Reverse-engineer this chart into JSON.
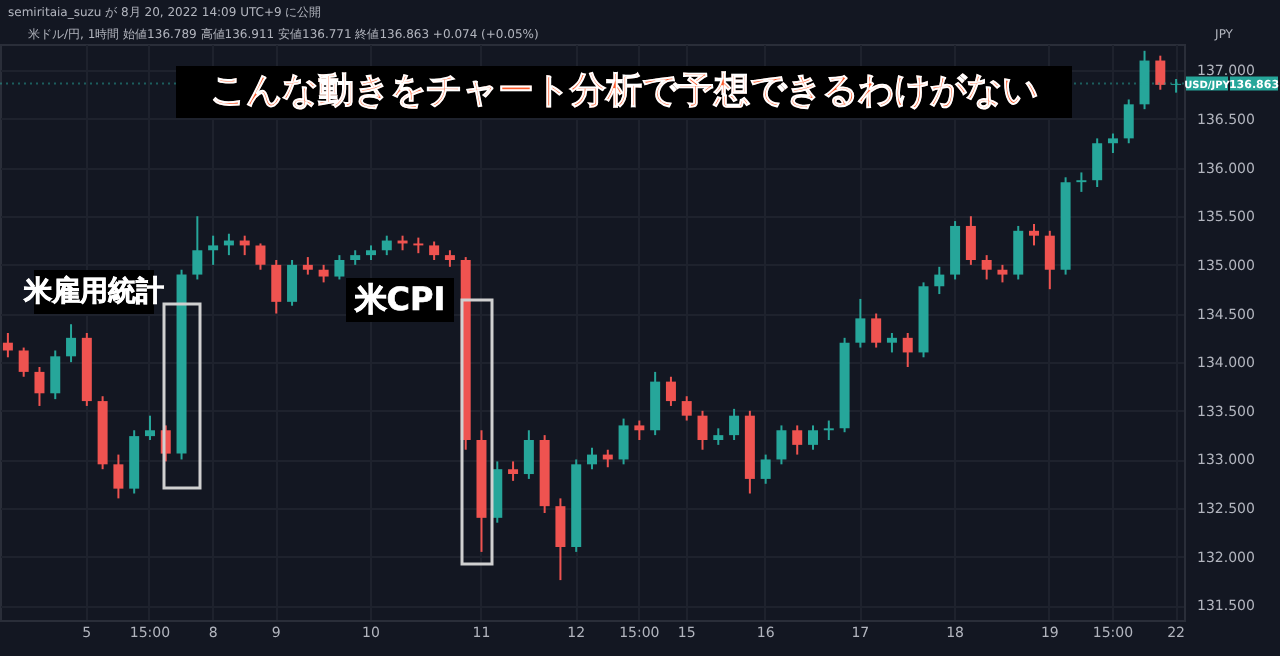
{
  "chart_data": {
    "type": "candlestick",
    "title": "米ドル/円, 1時間 始値136.789 高値136.911 安値136.771 終値136.863 +0.074 (+0.05%)",
    "subtitle": "semiritaia_suzu が 8月 20, 2022 14:09 UTC+9 に公開",
    "ylabel": "JPY",
    "annotations": [
      "こんな動きをチャート分析で予想できるわけがない",
      "米雇用統計",
      "米CPI",
      "136.863"
    ],
    "categories": [
      null,
      null,
      null,
      null,
      null,
      "5",
      null,
      null,
      null,
      "15:00",
      null,
      null,
      null,
      "8",
      null,
      null,
      null,
      "9",
      null,
      null,
      null,
      null,
      null,
      "10",
      null,
      null,
      null,
      null,
      null,
      null,
      "11",
      null,
      null,
      null,
      null,
      null,
      "12",
      null,
      null,
      null,
      "15:00",
      null,
      null,
      "15",
      null,
      null,
      null,
      null,
      "16",
      null,
      null,
      null,
      null,
      null,
      "17",
      null,
      null,
      null,
      null,
      null,
      "18",
      null,
      null,
      null,
      null,
      null,
      "19",
      null,
      null,
      null,
      "15:00",
      null,
      null,
      null,
      "22"
    ],
    "ohlc": [
      [
        134.2,
        134.3,
        134.05,
        134.12
      ],
      [
        134.12,
        134.15,
        133.85,
        133.9
      ],
      [
        133.9,
        133.95,
        133.55,
        133.68
      ],
      [
        133.68,
        134.12,
        133.62,
        134.06
      ],
      [
        134.06,
        134.39,
        134.0,
        134.25
      ],
      [
        134.25,
        134.3,
        133.55,
        133.6
      ],
      [
        133.6,
        133.65,
        132.9,
        132.95
      ],
      [
        132.95,
        133.05,
        132.6,
        132.7
      ],
      [
        132.7,
        133.3,
        132.65,
        133.24
      ],
      [
        133.24,
        133.45,
        133.2,
        133.3
      ],
      [
        133.3,
        133.35,
        132.98,
        133.06
      ],
      [
        133.06,
        134.95,
        133.0,
        134.9
      ],
      [
        134.9,
        135.5,
        134.85,
        135.15
      ],
      [
        135.15,
        135.3,
        135.0,
        135.2
      ],
      [
        135.2,
        135.32,
        135.1,
        135.25
      ],
      [
        135.25,
        135.3,
        135.1,
        135.2
      ],
      [
        135.2,
        135.22,
        134.95,
        135.0
      ],
      [
        135.0,
        135.05,
        134.5,
        134.62
      ],
      [
        134.62,
        135.05,
        134.58,
        135.0
      ],
      [
        135.0,
        135.08,
        134.9,
        134.95
      ],
      [
        134.95,
        135.0,
        134.82,
        134.88
      ],
      [
        134.88,
        135.1,
        134.85,
        135.05
      ],
      [
        135.05,
        135.15,
        135.0,
        135.1
      ],
      [
        135.1,
        135.2,
        135.05,
        135.15
      ],
      [
        135.15,
        135.3,
        135.1,
        135.25
      ],
      [
        135.25,
        135.3,
        135.15,
        135.22
      ],
      [
        135.22,
        135.28,
        135.12,
        135.2
      ],
      [
        135.2,
        135.24,
        135.05,
        135.1
      ],
      [
        135.1,
        135.15,
        134.98,
        135.05
      ],
      [
        135.05,
        135.08,
        133.1,
        133.2
      ],
      [
        133.2,
        133.3,
        132.05,
        132.4
      ],
      [
        132.4,
        132.98,
        132.35,
        132.9
      ],
      [
        132.9,
        132.98,
        132.78,
        132.85
      ],
      [
        132.85,
        133.3,
        132.8,
        133.2
      ],
      [
        133.2,
        133.25,
        132.45,
        132.52
      ],
      [
        132.52,
        132.6,
        131.76,
        132.1
      ],
      [
        132.1,
        133.0,
        132.05,
        132.95
      ],
      [
        132.95,
        133.12,
        132.9,
        133.05
      ],
      [
        133.05,
        133.1,
        132.92,
        133.0
      ],
      [
        133.0,
        133.42,
        132.95,
        133.35
      ],
      [
        133.35,
        133.4,
        133.2,
        133.3
      ],
      [
        133.3,
        133.9,
        133.25,
        133.8
      ],
      [
        133.8,
        133.85,
        133.55,
        133.6
      ],
      [
        133.6,
        133.65,
        133.4,
        133.45
      ],
      [
        133.45,
        133.5,
        133.1,
        133.2
      ],
      [
        133.2,
        133.32,
        133.15,
        133.25
      ],
      [
        133.25,
        133.52,
        133.2,
        133.45
      ],
      [
        133.45,
        133.5,
        132.65,
        132.8
      ],
      [
        132.8,
        133.05,
        132.75,
        133.0
      ],
      [
        133.0,
        133.35,
        132.95,
        133.3
      ],
      [
        133.3,
        133.35,
        133.05,
        133.15
      ],
      [
        133.15,
        133.35,
        133.1,
        133.3
      ],
      [
        133.3,
        133.4,
        133.2,
        133.32
      ],
      [
        133.32,
        134.25,
        133.28,
        134.2
      ],
      [
        134.2,
        134.65,
        134.15,
        134.45
      ],
      [
        134.45,
        134.5,
        134.15,
        134.2
      ],
      [
        134.2,
        134.3,
        134.1,
        134.25
      ],
      [
        134.25,
        134.3,
        133.95,
        134.1
      ],
      [
        134.1,
        134.82,
        134.05,
        134.78
      ],
      [
        134.78,
        134.98,
        134.7,
        134.9
      ],
      [
        134.9,
        135.45,
        134.85,
        135.4
      ],
      [
        135.4,
        135.5,
        135.0,
        135.05
      ],
      [
        135.05,
        135.1,
        134.85,
        134.95
      ],
      [
        134.95,
        135.0,
        134.82,
        134.9
      ],
      [
        134.9,
        135.4,
        134.85,
        135.35
      ],
      [
        135.35,
        135.42,
        135.2,
        135.3
      ],
      [
        135.3,
        135.35,
        134.75,
        134.95
      ],
      [
        134.95,
        135.9,
        134.9,
        135.85
      ],
      [
        135.85,
        135.95,
        135.75,
        135.87
      ],
      [
        135.87,
        136.3,
        135.8,
        136.25
      ],
      [
        136.25,
        136.35,
        136.15,
        136.3
      ],
      [
        136.3,
        136.7,
        136.25,
        136.65
      ],
      [
        136.65,
        137.2,
        136.6,
        137.1
      ],
      [
        137.1,
        137.15,
        136.8,
        136.85
      ],
      [
        136.85,
        136.91,
        136.77,
        136.86
      ]
    ],
    "colors": [
      "#ef5350",
      "#ef5350",
      "#ef5350",
      "#26a69a",
      "#26a69a",
      "#ef5350",
      "#ef5350",
      "#ef5350",
      "#26a69a",
      "#26a69a",
      "#ef5350",
      "#26a69a",
      "#26a69a",
      "#26a69a",
      "#26a69a",
      "#ef5350",
      "#ef5350",
      "#ef5350",
      "#26a69a",
      "#ef5350",
      "#ef5350",
      "#26a69a",
      "#26a69a",
      "#26a69a",
      "#26a69a",
      "#ef5350",
      "#ef5350",
      "#ef5350",
      "#ef5350",
      "#ef5350",
      "#ef5350",
      "#26a69a",
      "#ef5350",
      "#26a69a",
      "#ef5350",
      "#ef5350",
      "#26a69a",
      "#26a69a",
      "#ef5350",
      "#26a69a",
      "#ef5350",
      "#26a69a",
      "#ef5350",
      "#ef5350",
      "#ef5350",
      "#26a69a",
      "#26a69a",
      "#ef5350",
      "#26a69a",
      "#26a69a",
      "#ef5350",
      "#26a69a",
      "#26a69a",
      "#26a69a",
      "#26a69a",
      "#ef5350",
      "#26a69a",
      "#ef5350",
      "#26a69a",
      "#26a69a",
      "#26a69a",
      "#ef5350",
      "#ef5350",
      "#ef5350",
      "#26a69a",
      "#ef5350",
      "#ef5350",
      "#26a69a",
      "#26a69a",
      "#26a69a",
      "#26a69a",
      "#26a69a",
      "#26a69a",
      "#ef5350",
      "#26a69a"
    ],
    "ylim": [
      131.35,
      137.27
    ],
    "yticks": [
      {
        "value": 131.5,
        "label": "131.500"
      },
      {
        "value": 132,
        "label": "132.000"
      },
      {
        "value": 132.5,
        "label": "132.500"
      },
      {
        "value": 133,
        "label": "133.000"
      },
      {
        "value": 133.5,
        "label": "133.500"
      },
      {
        "value": 134,
        "label": "134.000"
      },
      {
        "value": 134.5,
        "label": "134.500"
      },
      {
        "value": 135,
        "label": "135.000"
      },
      {
        "value": 135.5,
        "label": "135.500"
      },
      {
        "value": 136,
        "label": "136.000"
      },
      {
        "value": 136.5,
        "label": "136.500"
      },
      {
        "value": 137,
        "label": "137.000"
      }
    ],
    "ref_lines": [
      {
        "axis": "y",
        "value": 136.863,
        "label": "USD/JPY",
        "color": "#26a69a",
        "line_style": "dotted"
      }
    ],
    "grid": true
  }
}
